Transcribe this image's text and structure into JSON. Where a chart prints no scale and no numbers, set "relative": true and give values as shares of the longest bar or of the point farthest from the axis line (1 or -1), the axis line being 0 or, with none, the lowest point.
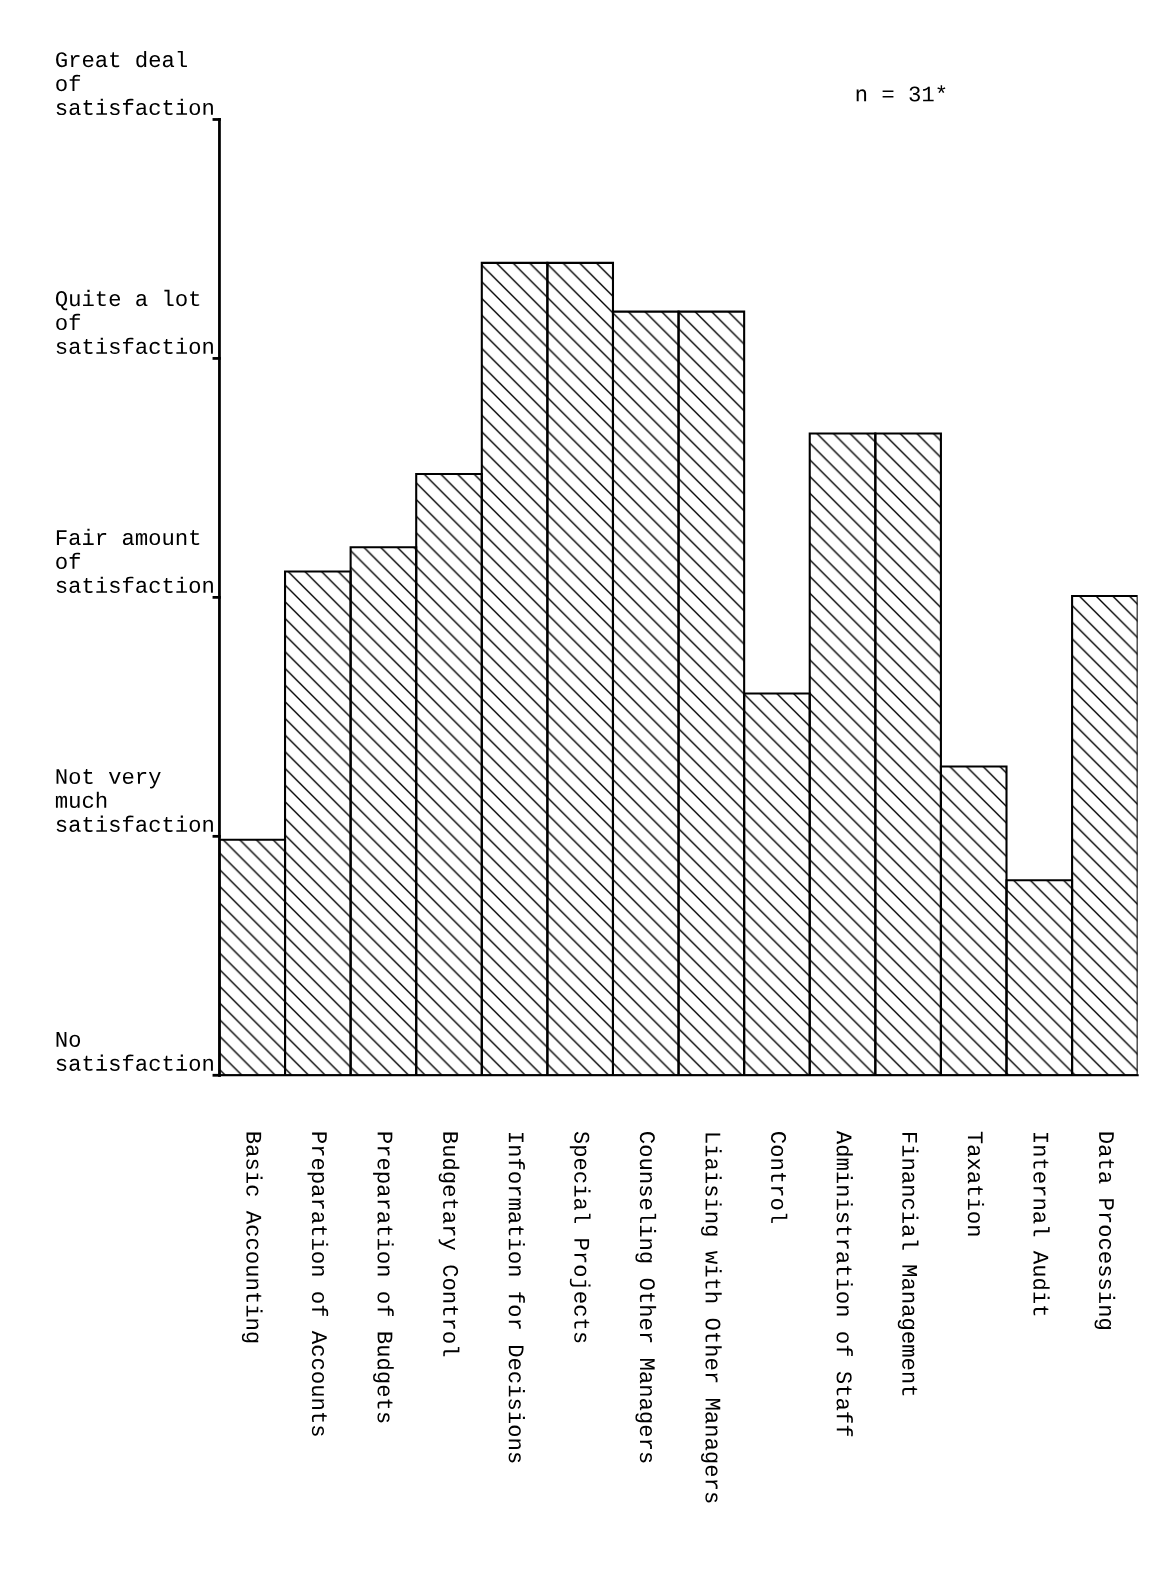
{
  "chart_data": {
    "type": "bar",
    "categories": [
      "Basic Accounting",
      "Preparation of Accounts",
      "Preparation of Budgets",
      "Budgetary Control",
      "Information for Decisions",
      "Special Projects",
      "Counseling Other Managers",
      "Liaising with Other Managers",
      "Control",
      "Administration of Staff",
      "Financial Management",
      "Taxation",
      "Internal Audit",
      "Data Processing"
    ],
    "values": [
      0.29,
      0.62,
      0.65,
      0.74,
      1.0,
      1.0,
      0.94,
      0.94,
      0.47,
      0.79,
      0.79,
      0.38,
      0.24,
      0.59
    ],
    "relative": true,
    "color": "#000000",
    "annotations": [
      "Great deal\nof\nsatisfaction",
      "Quite a lot\nof\nsatisfaction",
      "Fair amount\nof\nsatisfaction",
      "Not very\nmuch\nsatisfaction",
      "No\nsatisfaction",
      "n = 31*"
    ],
    "grid": false
  }
}
